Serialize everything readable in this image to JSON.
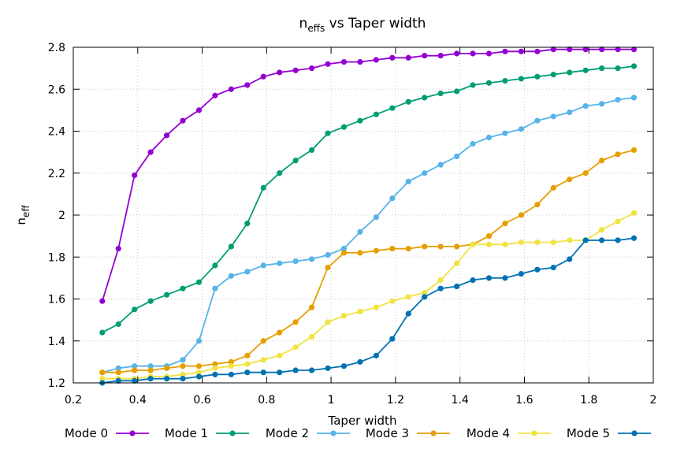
{
  "chart_data": {
    "type": "line",
    "title_main": "n",
    "title_sub": "effs",
    "title_rest": " vs Taper width",
    "xlabel": "Taper width",
    "ylabel_main": "n",
    "ylabel_sub": "eff",
    "xlim": [
      0.2,
      2.0
    ],
    "ylim": [
      1.2,
      2.8
    ],
    "xticks": [
      0.2,
      0.4,
      0.6,
      0.8,
      1.0,
      1.2,
      1.4,
      1.6,
      1.8,
      2.0
    ],
    "xtick_labels": [
      "0.2",
      "0.4",
      "0.6",
      "0.8",
      "1",
      "1.2",
      "1.4",
      "1.6",
      "1.8",
      "2"
    ],
    "yticks": [
      1.2,
      1.4,
      1.6,
      1.8,
      2.0,
      2.2,
      2.4,
      2.6,
      2.8
    ],
    "ytick_labels": [
      "1.2",
      "1.4",
      "1.6",
      "1.8",
      "2",
      "2.2",
      "2.4",
      "2.6",
      "2.8"
    ],
    "grid": true,
    "legend_position": "bottom",
    "x": [
      0.29,
      0.34,
      0.39,
      0.44,
      0.49,
      0.54,
      0.59,
      0.64,
      0.69,
      0.74,
      0.79,
      0.84,
      0.89,
      0.94,
      0.99,
      1.04,
      1.09,
      1.14,
      1.19,
      1.24,
      1.29,
      1.34,
      1.39,
      1.44,
      1.49,
      1.54,
      1.59,
      1.64,
      1.69,
      1.74,
      1.79,
      1.84,
      1.89,
      1.94
    ],
    "series": [
      {
        "name": "Mode 0",
        "color": "#9400d3",
        "values": [
          1.59,
          1.84,
          2.19,
          2.3,
          2.38,
          2.45,
          2.5,
          2.57,
          2.6,
          2.62,
          2.66,
          2.68,
          2.69,
          2.7,
          2.72,
          2.73,
          2.73,
          2.74,
          2.75,
          2.75,
          2.76,
          2.76,
          2.77,
          2.77,
          2.77,
          2.78,
          2.78,
          2.78,
          2.79,
          2.79,
          2.79,
          2.79,
          2.79,
          2.79
        ]
      },
      {
        "name": "Mode 1",
        "color": "#009e73",
        "values": [
          1.44,
          1.48,
          1.55,
          1.59,
          1.62,
          1.65,
          1.68,
          1.76,
          1.85,
          1.96,
          2.13,
          2.2,
          2.26,
          2.31,
          2.39,
          2.42,
          2.45,
          2.48,
          2.51,
          2.54,
          2.56,
          2.58,
          2.59,
          2.62,
          2.63,
          2.64,
          2.65,
          2.66,
          2.67,
          2.68,
          2.69,
          2.7,
          2.7,
          2.71
        ]
      },
      {
        "name": "Mode 2",
        "color": "#56b4e9",
        "values": [
          1.25,
          1.27,
          1.28,
          1.28,
          1.28,
          1.31,
          1.4,
          1.65,
          1.71,
          1.73,
          1.76,
          1.77,
          1.78,
          1.79,
          1.81,
          1.84,
          1.92,
          1.99,
          2.08,
          2.16,
          2.2,
          2.24,
          2.28,
          2.34,
          2.37,
          2.39,
          2.41,
          2.45,
          2.47,
          2.49,
          2.52,
          2.53,
          2.55,
          2.56
        ]
      },
      {
        "name": "Mode 3",
        "color": "#e69f00",
        "values": [
          1.25,
          1.25,
          1.26,
          1.26,
          1.27,
          1.28,
          1.28,
          1.29,
          1.3,
          1.33,
          1.4,
          1.44,
          1.49,
          1.56,
          1.75,
          1.82,
          1.82,
          1.83,
          1.84,
          1.84,
          1.85,
          1.85,
          1.85,
          1.86,
          1.9,
          1.96,
          2.0,
          2.05,
          2.13,
          2.17,
          2.2,
          2.26,
          2.29,
          2.31
        ]
      },
      {
        "name": "Mode 4",
        "color": "#f0e442",
        "values": [
          1.22,
          1.22,
          1.22,
          1.23,
          1.23,
          1.24,
          1.25,
          1.27,
          1.28,
          1.29,
          1.31,
          1.33,
          1.37,
          1.42,
          1.49,
          1.52,
          1.54,
          1.56,
          1.59,
          1.61,
          1.63,
          1.69,
          1.77,
          1.86,
          1.86,
          1.86,
          1.87,
          1.87,
          1.87,
          1.88,
          1.88,
          1.93,
          1.97,
          2.01
        ]
      },
      {
        "name": "Mode 5",
        "color": "#0072b2",
        "values": [
          1.2,
          1.21,
          1.21,
          1.22,
          1.22,
          1.22,
          1.23,
          1.24,
          1.24,
          1.25,
          1.25,
          1.25,
          1.26,
          1.26,
          1.27,
          1.28,
          1.3,
          1.33,
          1.41,
          1.53,
          1.61,
          1.65,
          1.66,
          1.69,
          1.7,
          1.7,
          1.72,
          1.74,
          1.75,
          1.79,
          1.88,
          1.88,
          1.88,
          1.89
        ]
      }
    ]
  }
}
